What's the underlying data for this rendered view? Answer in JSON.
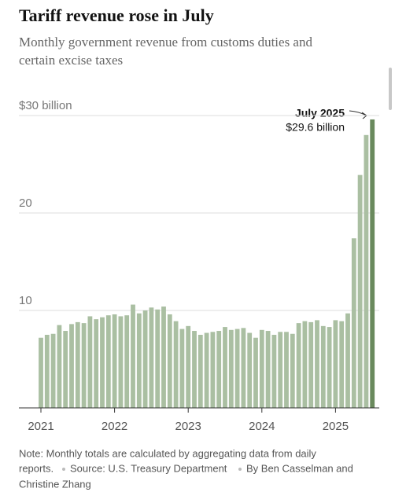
{
  "chart_data": {
    "type": "bar",
    "title": "Tariff revenue rose in July",
    "subtitle": [
      "Monthly government revenue from customs duties and",
      "certain excise taxes"
    ],
    "categories": [
      "2021",
      null,
      null,
      null,
      null,
      null,
      null,
      null,
      null,
      null,
      null,
      null,
      "2022",
      null,
      null,
      null,
      null,
      null,
      null,
      null,
      null,
      null,
      null,
      null,
      "2023",
      null,
      null,
      null,
      null,
      null,
      null,
      null,
      null,
      null,
      null,
      null,
      "2024",
      null,
      null,
      null,
      null,
      null,
      null,
      null,
      null,
      null,
      null,
      null,
      "2025",
      null,
      null,
      null,
      null,
      null,
      null
    ],
    "values": [
      7.2,
      7.5,
      7.6,
      8.5,
      7.9,
      8.6,
      8.8,
      8.7,
      9.4,
      9.1,
      9.3,
      9.5,
      9.6,
      9.4,
      9.5,
      10.6,
      9.7,
      10.0,
      10.3,
      10.1,
      10.4,
      9.6,
      8.9,
      8.1,
      8.4,
      7.9,
      7.5,
      7.7,
      7.8,
      7.9,
      8.3,
      8.0,
      8.1,
      8.2,
      7.7,
      7.2,
      8.0,
      7.9,
      7.5,
      7.8,
      7.8,
      7.6,
      8.7,
      8.9,
      8.8,
      9.0,
      8.4,
      8.3,
      9.0,
      8.9,
      9.7,
      17.4,
      23.9,
      28.0,
      29.6
    ],
    "color": "#aabfa2",
    "highlight_color": "#6a8a5d",
    "highlight_index": 54,
    "ylim": [
      0,
      30
    ],
    "yticks": [
      10,
      20,
      {
        "value": 30,
        "label": "$30 billion"
      }
    ],
    "grid": true,
    "annotation": {
      "label": "July 2025",
      "text": "$29.6 billion"
    },
    "note": [
      "Note: Monthly totals are calculated by aggregating data from daily",
      "reports."
    ],
    "source": "Source: U.S. Treasury Department",
    "byline": [
      "By Ben Casselman and",
      "Christine Zhang"
    ]
  }
}
